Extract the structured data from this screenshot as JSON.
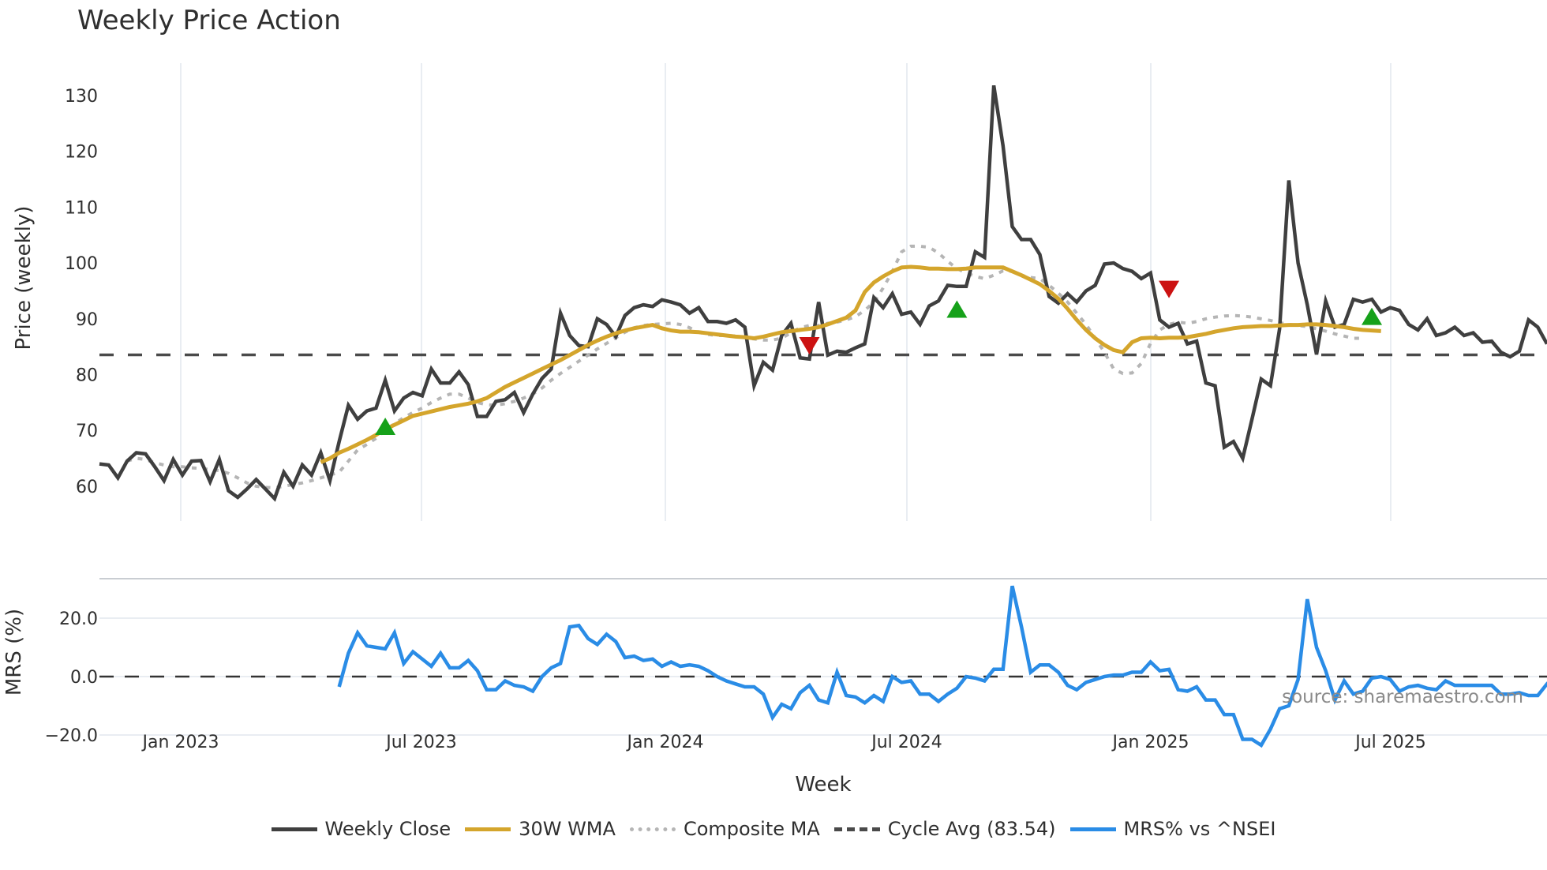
{
  "title": "Weekly Price Action",
  "source_note": "source: sharemaestro.com",
  "colors": {
    "close": "#3f3f3f",
    "wma": "#d4a52c",
    "composite": "#b5b5b5",
    "cycle": "#4a4a4a",
    "mrs": "#2a8ce6",
    "buy": "#16a11a",
    "sell": "#cc1212",
    "grid": "#e9edf2"
  },
  "legend": [
    {
      "key": "close",
      "label": "Weekly Close",
      "style": "solid"
    },
    {
      "key": "wma",
      "label": "30W WMA",
      "style": "solid"
    },
    {
      "key": "composite",
      "label": "Composite MA",
      "style": "dotted"
    },
    {
      "key": "cycle",
      "label": "Cycle Avg (83.54)",
      "style": "dashed"
    },
    {
      "key": "mrs",
      "label": "MRS% vs ^NSEI",
      "style": "solid"
    }
  ],
  "chart_data": [
    {
      "type": "line",
      "title": "Weekly Price Action",
      "xlabel": "Week",
      "ylabel": "Price (weekly)",
      "ylim": [
        53,
        136
      ],
      "yticks": [
        60,
        70,
        80,
        90,
        100,
        110,
        120,
        130
      ],
      "xticks": [
        "Jan 2023",
        "Jul 2023",
        "Jan 2024",
        "Jul 2024",
        "Jan 2025",
        "Jul 2025"
      ],
      "grid": true,
      "legend_position": "bottom",
      "cycle_avg": 83.54,
      "series": [
        {
          "name": "Weekly Close",
          "values": [
            64,
            63.8,
            61.5,
            64.5,
            66,
            65.8,
            63.5,
            61,
            64.8,
            62,
            64.5,
            64.6,
            60.8,
            64.8,
            59.2,
            58,
            59.5,
            61.2,
            59.5,
            57.8,
            62.5,
            60,
            63.8,
            62,
            66,
            61,
            68,
            74.5,
            72,
            73.5,
            74,
            79,
            73.5,
            75.8,
            76.8,
            76.2,
            81,
            78.5,
            78.5,
            80.5,
            78.2,
            72.5,
            72.5,
            75.2,
            75.5,
            76.8,
            73.2,
            76.5,
            79.3,
            81,
            91,
            87,
            85.2,
            85,
            90,
            89,
            86.8,
            90.6,
            92,
            92.5,
            92.2,
            93.4,
            93,
            92.5,
            91,
            92,
            89.5,
            89.5,
            89.2,
            89.8,
            88.5,
            78,
            82.2,
            80.8,
            87,
            89.2,
            83,
            82.8,
            93,
            83.5,
            84.2,
            84,
            84.8,
            85.5,
            93.8,
            92,
            94.5,
            90.8,
            91.2,
            89,
            92.3,
            93.2,
            96,
            95.8,
            95.8,
            102,
            101,
            131.8,
            121,
            106.5,
            104.2,
            104.2,
            101.5,
            94,
            92.8,
            94.5,
            93,
            95,
            96,
            99.8,
            100,
            99,
            98.5,
            97.2,
            98.2,
            89.8,
            88.5,
            89.2,
            85.5,
            86,
            78.5,
            78,
            67,
            68,
            65,
            72,
            79.2,
            78,
            88.2,
            114.8,
            100,
            92.5,
            83.6,
            93.2,
            88.5,
            89,
            93.5,
            93,
            93.5,
            91.2,
            92,
            91.5,
            89,
            88,
            90,
            87,
            87.5,
            88.5,
            87,
            87.5,
            85.8,
            86,
            84,
            83.2,
            84.2,
            89.8,
            88.5,
            85.5
          ]
        },
        {
          "name": "30W WMA",
          "start_index": 24,
          "values": [
            64.3,
            65,
            66,
            66.7,
            67.5,
            68.3,
            69.2,
            70.2,
            71,
            71.8,
            72.6,
            73,
            73.4,
            73.8,
            74.2,
            74.5,
            74.8,
            75.2,
            75.8,
            76.8,
            77.8,
            78.6,
            79.4,
            80.2,
            81,
            81.8,
            82.6,
            83.5,
            84.4,
            85.3,
            86.1,
            86.8,
            87.4,
            87.9,
            88.3,
            88.6,
            88.9,
            88.3,
            87.9,
            87.7,
            87.7,
            87.6,
            87.4,
            87.2,
            87,
            86.8,
            86.7,
            86.5,
            86.8,
            87.2,
            87.6,
            87.8,
            88,
            88.2,
            88.5,
            89,
            89.6,
            90.2,
            91.5,
            94.8,
            96.5,
            97.6,
            98.5,
            99.2,
            99.3,
            99.2,
            99,
            99,
            98.9,
            98.9,
            99,
            99.2,
            99.2,
            99.2,
            99.2,
            98.5,
            97.8,
            97,
            96.2,
            95,
            93.6,
            91.8,
            89.8,
            88,
            86.5,
            85.3,
            84.4,
            84,
            85.8,
            86.5,
            86.6,
            86.5,
            86.6,
            86.6,
            86.7,
            87,
            87.3,
            87.7,
            88,
            88.3,
            88.5,
            88.6,
            88.7,
            88.7,
            88.8,
            88.9,
            88.9,
            89,
            89,
            88.9,
            88.7,
            88.5,
            88.2,
            88,
            87.9,
            87.8
          ]
        },
        {
          "name": "Composite MA",
          "start_index": 3,
          "values": [
            64.5,
            65,
            64.8,
            64.2,
            63.8,
            63.5,
            63.5,
            63.3,
            63.2,
            63,
            62.8,
            62.3,
            61.5,
            60.6,
            60,
            59.8,
            59.7,
            60,
            60.3,
            60.6,
            61,
            61.5,
            62,
            62.5,
            64.5,
            66.5,
            67.5,
            68.6,
            70,
            71.2,
            72.3,
            73.2,
            74,
            75,
            75.8,
            76.5,
            76.5,
            75.8,
            75,
            74.6,
            74.5,
            74.8,
            75.2,
            75.8,
            76.5,
            77.6,
            79,
            80.2,
            81.3,
            82.4,
            83.5,
            84.6,
            85.6,
            86.6,
            87.6,
            88.4,
            88.8,
            89,
            89.1,
            89.2,
            89,
            88.4,
            87.6,
            87.2,
            87,
            87,
            86.9,
            86.6,
            86.4,
            86.2,
            86.2,
            86.5,
            87.5,
            88.4,
            88.8,
            88.8,
            89.2,
            89.4,
            89.8,
            90.4,
            91.5,
            93,
            95.5,
            98.5,
            102,
            103,
            103,
            102.8,
            101.8,
            100.3,
            99,
            98.2,
            97.6,
            97.2,
            97.8,
            98.6,
            98.5,
            97.8,
            97.4,
            97.2,
            96,
            94.6,
            93,
            91,
            89,
            86.5,
            84,
            81,
            80.2,
            80.3,
            82,
            85.6,
            88,
            89,
            89.4,
            89.2,
            89.5,
            90,
            90.3,
            90.5,
            90.6,
            90.5,
            90.3,
            90,
            89.7,
            89.3,
            89,
            88.8,
            88.6,
            88.2,
            87.8,
            87.3,
            86.9,
            86.5,
            86.5
          ]
        }
      ],
      "signals": [
        {
          "type": "buy",
          "index": 31,
          "value": 70.6
        },
        {
          "type": "sell",
          "index": 77,
          "value": 85.3
        },
        {
          "type": "buy",
          "index": 93,
          "value": 91.6
        },
        {
          "type": "sell",
          "index": 116,
          "value": 95.4
        },
        {
          "type": "buy",
          "index": 138,
          "value": 90.3
        }
      ]
    },
    {
      "type": "line",
      "title": "",
      "xlabel": "Week",
      "ylabel": "MRS (%)",
      "ylim": [
        -27,
        35
      ],
      "yticks": [
        -20.0,
        0.0,
        20.0
      ],
      "ytick_labels": [
        "−20.0",
        "0.0",
        "20.0"
      ],
      "xticks": [
        "Jan 2023",
        "Jul 2023",
        "Jan 2024",
        "Jul 2024",
        "Jan 2025",
        "Jul 2025"
      ],
      "grid": true,
      "zero_line": 0,
      "series": [
        {
          "name": "MRS% vs ^NSEI",
          "start_index": 26,
          "values": [
            -3.5,
            8,
            15,
            10.5,
            10,
            9.5,
            15,
            4.5,
            8.5,
            6,
            3.5,
            8,
            3,
            3,
            5.5,
            2,
            -4.5,
            -4.5,
            -1.5,
            -3,
            -3.5,
            -5,
            0,
            3,
            4.5,
            17,
            17.5,
            13,
            11,
            14.5,
            12,
            6.5,
            7,
            5.5,
            6,
            3.5,
            5,
            3.5,
            4,
            3.5,
            2,
            0,
            -1.5,
            -2.5,
            -3.5,
            -3.5,
            -6,
            -14,
            -9.5,
            -11,
            -5.5,
            -3,
            -8,
            -9,
            1.5,
            -6.5,
            -7,
            -9,
            -6.5,
            -8.5,
            0,
            -2,
            -1.5,
            -6,
            -6,
            -8.5,
            -6,
            -4,
            0,
            -0.5,
            -1.5,
            2.5,
            2.5,
            31,
            17,
            1.5,
            4,
            4,
            1.5,
            -3,
            -4.5,
            -2,
            -1,
            0,
            0.5,
            0.5,
            1.5,
            1.5,
            5,
            2,
            2.5,
            -4.5,
            -5,
            -3.5,
            -8,
            -8,
            -13,
            -13,
            -21.5,
            -21.5,
            -23.5,
            -18,
            -11,
            -10,
            -1,
            26.5,
            10,
            2,
            -8,
            -1.5,
            -6,
            -5,
            -0.5,
            0,
            -1,
            -5,
            -3.5,
            -3,
            -4,
            -4.5,
            -1.5,
            -3,
            -3,
            -3,
            -3,
            -3,
            -6,
            -6,
            -5.5,
            -6.5,
            -6.5,
            -2.5,
            -4.5,
            -7.5
          ]
        }
      ]
    }
  ],
  "axes": {
    "price_ylabel": "Price (weekly)",
    "mrs_ylabel": "MRS (%)",
    "xlabel": "Week"
  }
}
